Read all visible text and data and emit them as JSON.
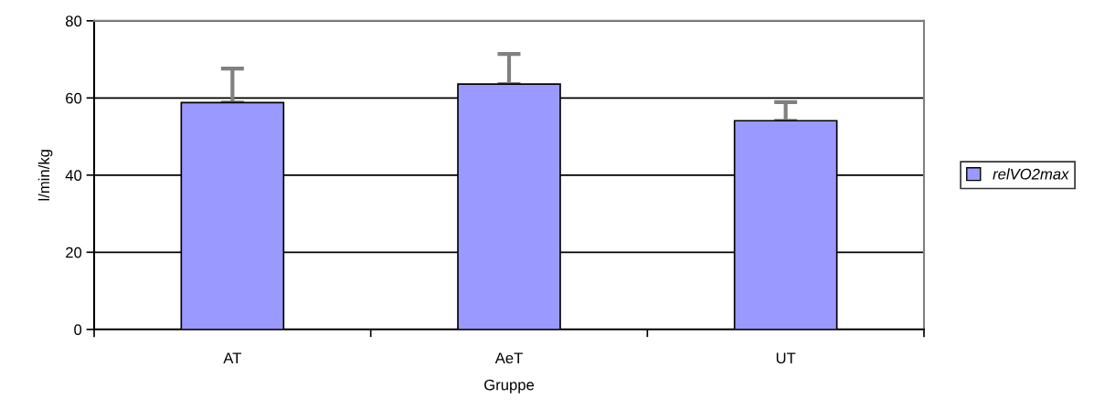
{
  "chart_data": {
    "type": "bar",
    "xlabel": "Gruppe",
    "ylabel": "l/min/kg",
    "categories": [
      "AT",
      "AeT",
      "UT"
    ],
    "series": [
      {
        "name": "relVO2max",
        "color": "#9999ff",
        "values": [
          58.8,
          63.6,
          54.1
        ],
        "errors": [
          [
            58.8,
            67.6
          ],
          [
            63.6,
            71.4
          ],
          [
            54.1,
            58.9
          ]
        ]
      }
    ],
    "ylim": [
      0,
      80
    ],
    "yticks": [
      0,
      20,
      40,
      60,
      80
    ],
    "grid": "y",
    "legend": "right"
  }
}
